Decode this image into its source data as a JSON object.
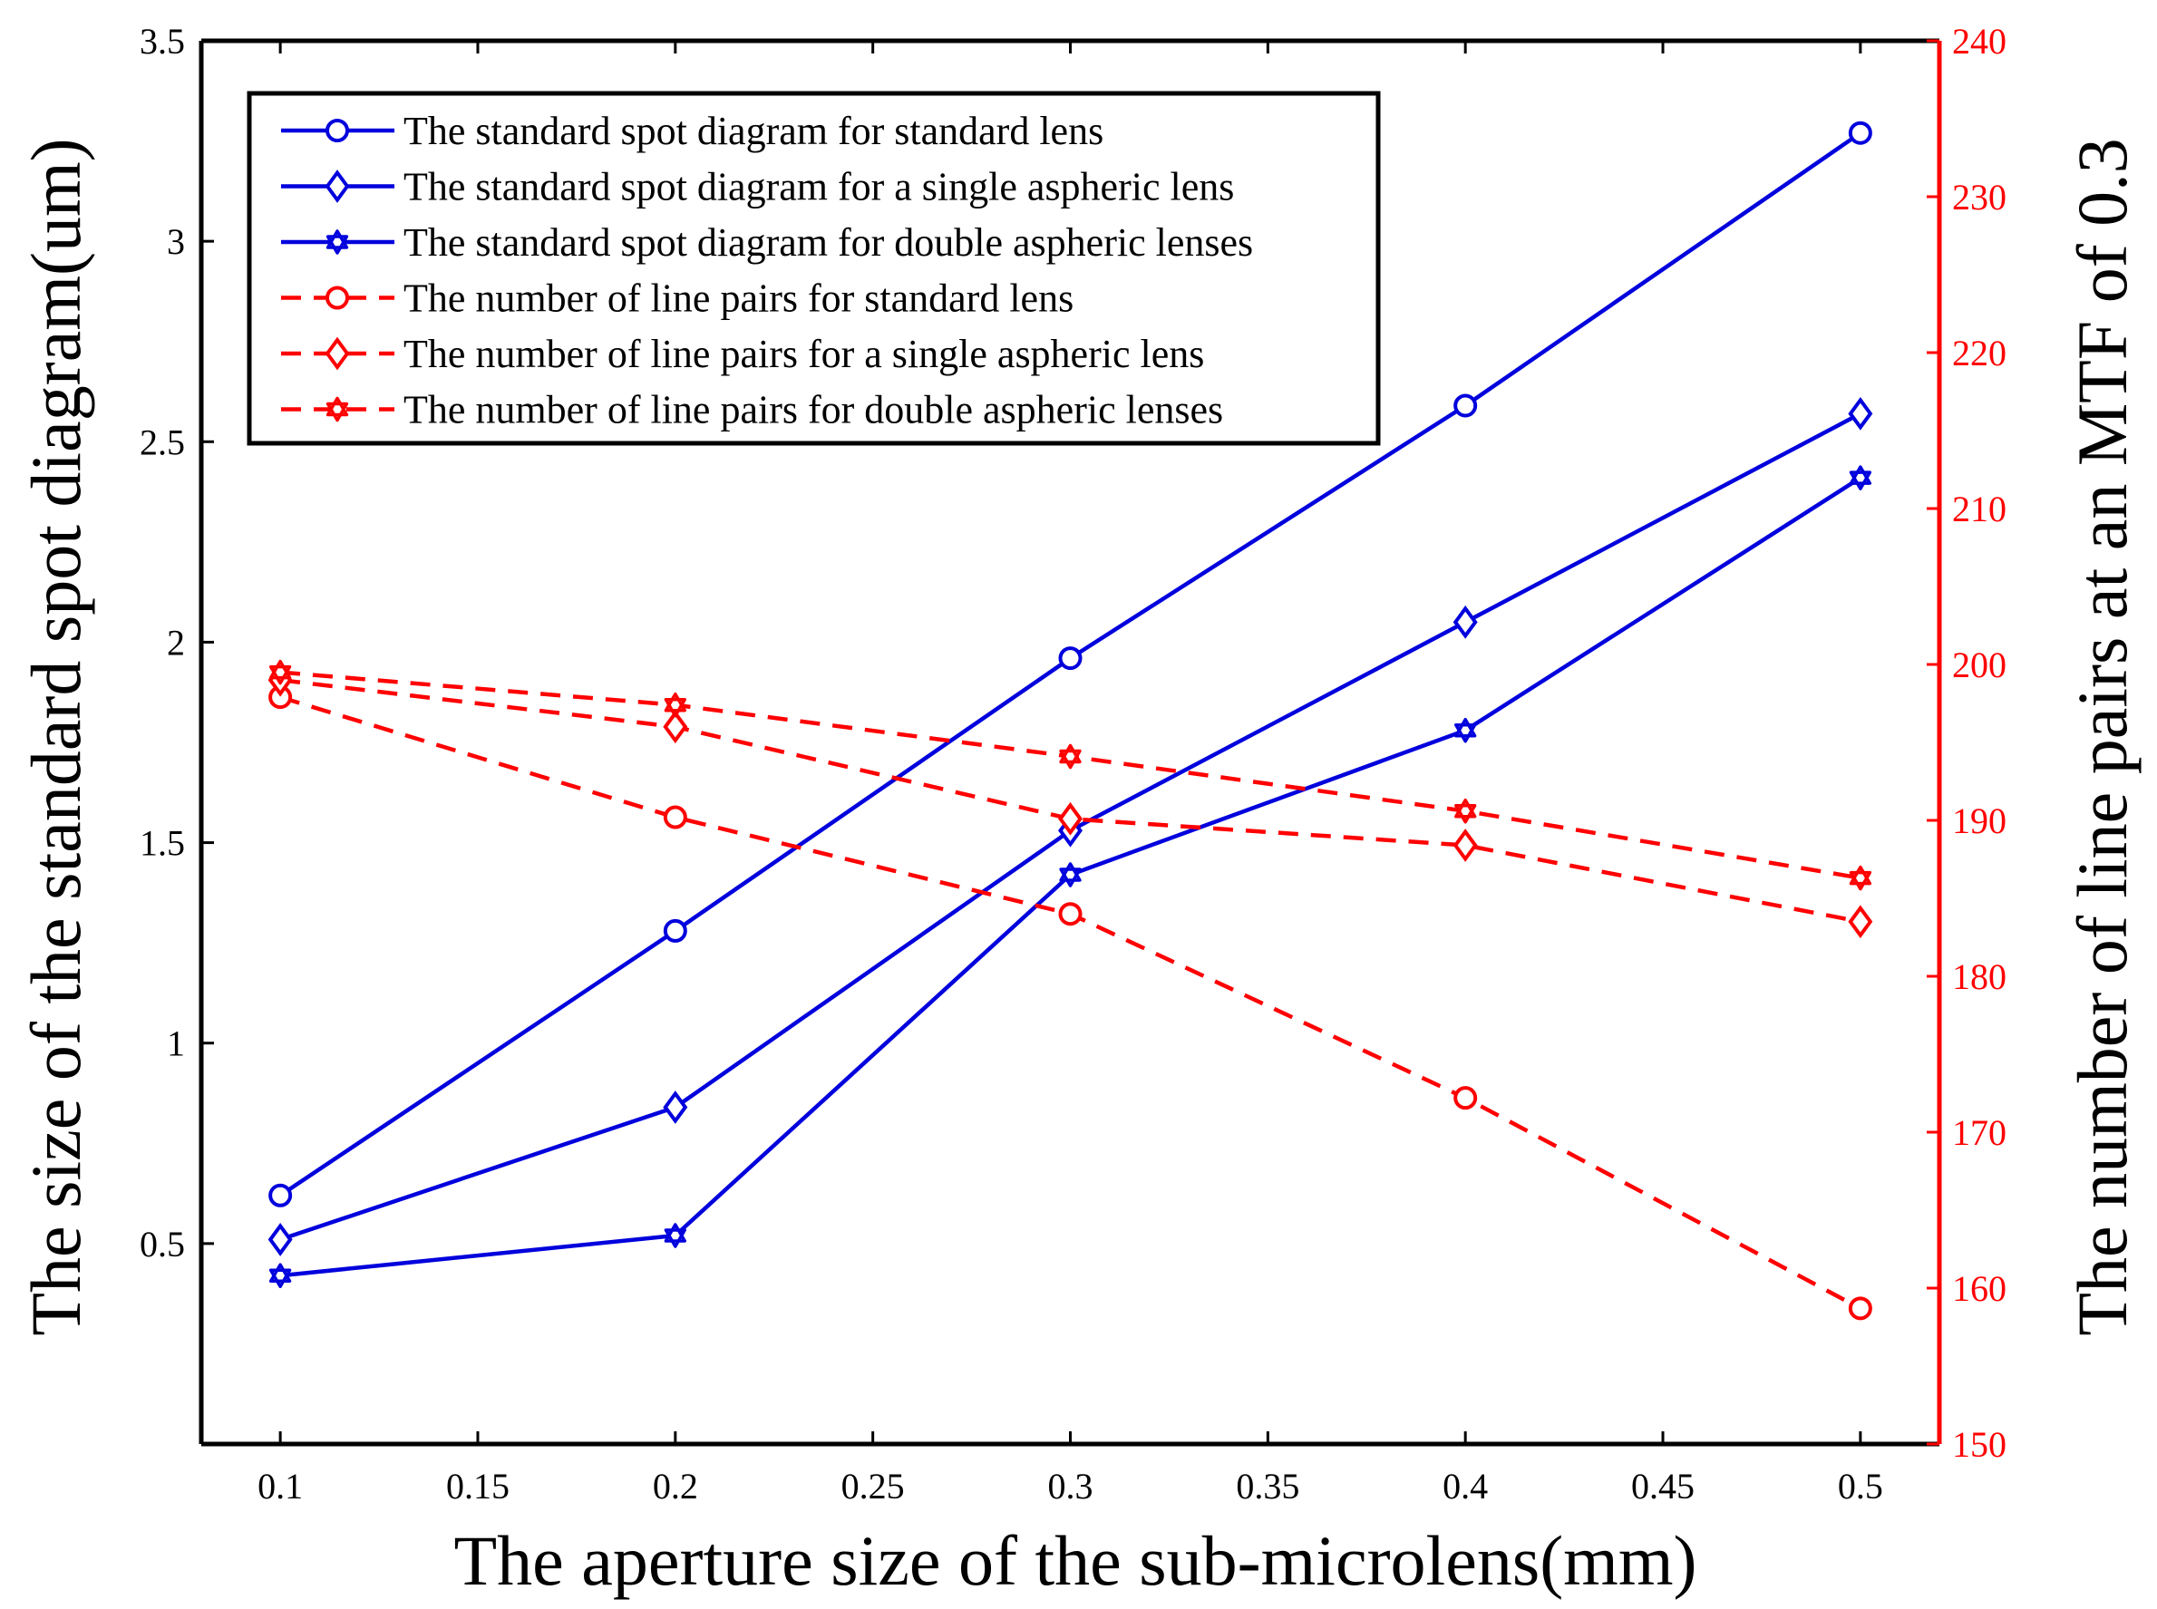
{
  "chart_data": {
    "type": "line",
    "x": [
      0.1,
      0.2,
      0.3,
      0.4,
      0.5
    ],
    "xlabel": "The aperture size of the sub-microlens(mm)",
    "ylabel_left": "The size of the standard spot diagram(um)",
    "ylabel_right": "The number of line pairs at an MTF of 0.3",
    "xlim": [
      0.08,
      0.52
    ],
    "ylim_left": [
      0,
      3.5
    ],
    "ylim_right": [
      150,
      240
    ],
    "xticks": [
      "0.1",
      "0.15",
      "0.2",
      "0.25",
      "0.3",
      "0.35",
      "0.4",
      "0.45",
      "0.5"
    ],
    "yticks_left": [
      "0.5",
      "1",
      "1.5",
      "2",
      "2.5",
      "3",
      "3.5"
    ],
    "yticks_right": [
      "150",
      "160",
      "170",
      "180",
      "190",
      "200",
      "210",
      "220",
      "230",
      "240"
    ],
    "legend_position": "top-left",
    "series": [
      {
        "name": "The standard spot diagram for standard lens",
        "axis": "left",
        "style": "solid",
        "marker": "circle",
        "color": "#0000dd",
        "values": [
          0.62,
          1.28,
          1.96,
          2.59,
          3.27
        ]
      },
      {
        "name": "The standard spot diagram for a single aspheric lens",
        "axis": "left",
        "style": "solid",
        "marker": "diamond",
        "color": "#0000dd",
        "values": [
          0.51,
          0.84,
          1.53,
          2.05,
          2.57
        ]
      },
      {
        "name": "The standard spot diagram for double aspheric lenses",
        "axis": "left",
        "style": "solid",
        "marker": "star",
        "color": "#0000dd",
        "values": [
          0.42,
          0.52,
          1.42,
          1.78,
          2.41
        ]
      },
      {
        "name": "The number of line pairs for standard lens",
        "axis": "right",
        "style": "dashed",
        "marker": "circle",
        "color": "#ff0000",
        "values": [
          197.9,
          190.2,
          184,
          172.2,
          158.7
        ]
      },
      {
        "name": "The number of line pairs for a single aspheric lens",
        "axis": "right",
        "style": "dashed",
        "marker": "diamond",
        "color": "#ff0000",
        "values": [
          199,
          196,
          190.1,
          188.4,
          183.5
        ]
      },
      {
        "name": "The number of line pairs for double aspheric lenses",
        "axis": "right",
        "style": "dashed",
        "marker": "star",
        "color": "#ff0000",
        "values": [
          199.5,
          197.4,
          194.1,
          190.6,
          186.3
        ]
      }
    ]
  }
}
